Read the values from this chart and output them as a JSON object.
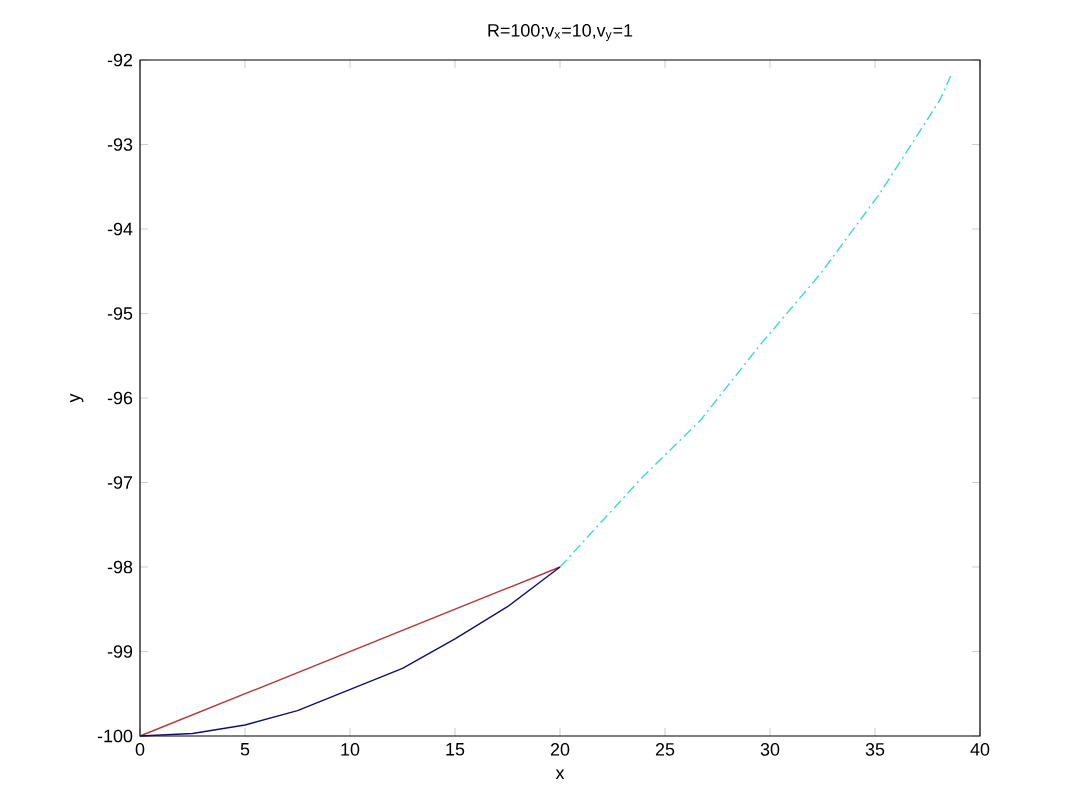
{
  "chart_data": {
    "type": "line",
    "title": "R=100;v$_{x}$=10,v$_{y}$=1",
    "xlabel": "x",
    "ylabel": "y",
    "xlim": [
      0,
      40
    ],
    "ylim": [
      -100,
      -92
    ],
    "xticks": [
      0,
      5,
      10,
      15,
      20,
      25,
      30,
      35,
      40
    ],
    "yticks": [
      -100,
      -99,
      -98,
      -97,
      -96,
      -95,
      -94,
      -93,
      -92
    ],
    "grid": false,
    "series": [
      {
        "color": "#b03a3a",
        "x": [
          0,
          20
        ],
        "values": [
          -100,
          -98
        ],
        "line_style": "solid"
      },
      {
        "color": "#10106a",
        "x": [
          0,
          2.5,
          5,
          7.5,
          10,
          12.5,
          15,
          17.5,
          20
        ],
        "values": [
          -100,
          -99.97,
          -99.87,
          -99.7,
          -99.45,
          -99.2,
          -98.85,
          -98.47,
          -98
        ],
        "line_style": "solid"
      },
      {
        "color": "#40d8c8",
        "x": [
          20,
          23.8,
          26.7,
          29.5,
          32.4,
          35.2,
          38.1,
          38.6
        ],
        "values": [
          -98,
          -96.97,
          -96.26,
          -95.38,
          -94.53,
          -93.59,
          -92.47,
          -92.19
        ],
        "line_style": "dashed"
      }
    ]
  }
}
